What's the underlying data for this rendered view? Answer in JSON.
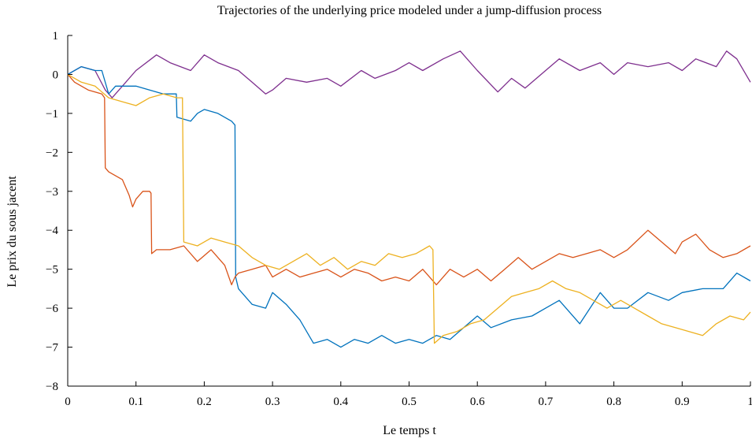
{
  "chart_data": {
    "type": "line",
    "title": "Trajectories of the underlying price modeled under a jump-diffusion process",
    "xlabel": "Le temps t",
    "ylabel": "Le prix du sous jacent",
    "xlim": [
      0,
      1
    ],
    "ylim": [
      -8,
      1
    ],
    "xticks": [
      0,
      0.1,
      0.2,
      0.3,
      0.4,
      0.5,
      0.6,
      0.7,
      0.8,
      0.9,
      1
    ],
    "xtick_labels": [
      "0",
      "0.1",
      "0.2",
      "0.3",
      "0.4",
      "0.5",
      "0.6",
      "0.7",
      "0.8",
      "0.9",
      "1"
    ],
    "yticks": [
      1,
      0,
      -1,
      -2,
      -3,
      -4,
      -5,
      -6,
      -7,
      -8
    ],
    "ytick_labels": [
      "1",
      "0",
      "−1",
      "−2",
      "−3",
      "−4",
      "−5",
      "−6",
      "−7",
      "−8"
    ],
    "grid": false,
    "legend": "none",
    "series": [
      {
        "color": "#7E2F8E",
        "x": [
          0,
          0.02,
          0.04,
          0.055,
          0.065,
          0.08,
          0.1,
          0.13,
          0.15,
          0.18,
          0.2,
          0.22,
          0.25,
          0.27,
          0.29,
          0.3,
          0.32,
          0.35,
          0.38,
          0.4,
          0.43,
          0.45,
          0.48,
          0.5,
          0.52,
          0.55,
          0.575,
          0.6,
          0.63,
          0.65,
          0.67,
          0.7,
          0.72,
          0.75,
          0.78,
          0.8,
          0.82,
          0.85,
          0.88,
          0.9,
          0.92,
          0.95,
          0.965,
          0.98,
          1.0
        ],
        "y": [
          0,
          0.2,
          0.1,
          -0.4,
          -0.6,
          -0.3,
          0.1,
          0.5,
          0.3,
          0.1,
          0.5,
          0.3,
          0.1,
          -0.2,
          -0.5,
          -0.4,
          -0.1,
          -0.2,
          -0.1,
          -0.3,
          0.1,
          -0.1,
          0.1,
          0.3,
          0.1,
          0.4,
          0.6,
          0.1,
          -0.45,
          -0.1,
          -0.35,
          0.1,
          0.4,
          0.1,
          0.3,
          0.0,
          0.3,
          0.2,
          0.3,
          0.1,
          0.4,
          0.2,
          0.6,
          0.4,
          -0.2
        ]
      },
      {
        "color": "#0072BD",
        "x": [
          0,
          0.02,
          0.04,
          0.05,
          0.06,
          0.07,
          0.1,
          0.12,
          0.14,
          0.159,
          0.16,
          0.18,
          0.19,
          0.2,
          0.22,
          0.24,
          0.245,
          0.246,
          0.25,
          0.27,
          0.29,
          0.3,
          0.32,
          0.34,
          0.36,
          0.38,
          0.4,
          0.42,
          0.44,
          0.46,
          0.48,
          0.5,
          0.52,
          0.54,
          0.56,
          0.58,
          0.6,
          0.62,
          0.65,
          0.68,
          0.7,
          0.72,
          0.75,
          0.78,
          0.8,
          0.82,
          0.85,
          0.88,
          0.9,
          0.93,
          0.96,
          0.98,
          1.0
        ],
        "y": [
          0,
          0.2,
          0.1,
          0.1,
          -0.5,
          -0.3,
          -0.3,
          -0.4,
          -0.5,
          -0.5,
          -1.1,
          -1.2,
          -1.0,
          -0.9,
          -1.0,
          -1.2,
          -1.3,
          -5.2,
          -5.5,
          -5.9,
          -6.0,
          -5.6,
          -5.9,
          -6.3,
          -6.9,
          -6.8,
          -7.0,
          -6.8,
          -6.9,
          -6.7,
          -6.9,
          -6.8,
          -6.9,
          -6.7,
          -6.8,
          -6.5,
          -6.2,
          -6.5,
          -6.3,
          -6.2,
          -6.0,
          -5.8,
          -6.4,
          -5.6,
          -6.0,
          -6.0,
          -5.6,
          -5.8,
          -5.6,
          -5.5,
          -5.5,
          -5.1,
          -5.3
        ]
      },
      {
        "color": "#D95319",
        "x": [
          0,
          0.01,
          0.03,
          0.05,
          0.054,
          0.055,
          0.06,
          0.08,
          0.09,
          0.095,
          0.1,
          0.11,
          0.12,
          0.122,
          0.123,
          0.13,
          0.15,
          0.17,
          0.19,
          0.21,
          0.23,
          0.24,
          0.245,
          0.25,
          0.27,
          0.29,
          0.3,
          0.32,
          0.34,
          0.36,
          0.38,
          0.4,
          0.42,
          0.44,
          0.46,
          0.48,
          0.5,
          0.52,
          0.54,
          0.56,
          0.58,
          0.6,
          0.62,
          0.64,
          0.66,
          0.68,
          0.7,
          0.72,
          0.74,
          0.76,
          0.78,
          0.8,
          0.82,
          0.85,
          0.87,
          0.89,
          0.9,
          0.92,
          0.94,
          0.96,
          0.98,
          1.0
        ],
        "y": [
          0,
          -0.2,
          -0.4,
          -0.5,
          -0.6,
          -2.4,
          -2.5,
          -2.7,
          -3.1,
          -3.4,
          -3.2,
          -3.0,
          -3.0,
          -3.05,
          -4.6,
          -4.5,
          -4.5,
          -4.4,
          -4.8,
          -4.5,
          -4.9,
          -5.4,
          -5.2,
          -5.1,
          -5.0,
          -4.9,
          -5.2,
          -5.0,
          -5.2,
          -5.1,
          -5.0,
          -5.2,
          -5.0,
          -5.1,
          -5.3,
          -5.2,
          -5.3,
          -5.0,
          -5.4,
          -5.0,
          -5.2,
          -5.0,
          -5.3,
          -5.0,
          -4.7,
          -5.0,
          -4.8,
          -4.6,
          -4.7,
          -4.6,
          -4.5,
          -4.7,
          -4.5,
          -4.0,
          -4.3,
          -4.6,
          -4.3,
          -4.1,
          -4.5,
          -4.7,
          -4.6,
          -4.4
        ]
      },
      {
        "color": "#EDB120",
        "x": [
          0,
          0.02,
          0.04,
          0.06,
          0.08,
          0.1,
          0.12,
          0.14,
          0.16,
          0.168,
          0.17,
          0.19,
          0.21,
          0.23,
          0.25,
          0.27,
          0.29,
          0.31,
          0.33,
          0.35,
          0.37,
          0.39,
          0.41,
          0.43,
          0.45,
          0.47,
          0.49,
          0.51,
          0.53,
          0.535,
          0.537,
          0.55,
          0.57,
          0.59,
          0.61,
          0.63,
          0.65,
          0.67,
          0.69,
          0.71,
          0.73,
          0.75,
          0.77,
          0.79,
          0.81,
          0.83,
          0.85,
          0.87,
          0.89,
          0.91,
          0.93,
          0.95,
          0.97,
          0.99,
          1.0
        ],
        "y": [
          0,
          -0.2,
          -0.3,
          -0.6,
          -0.7,
          -0.8,
          -0.6,
          -0.5,
          -0.6,
          -0.6,
          -4.3,
          -4.4,
          -4.2,
          -4.3,
          -4.4,
          -4.7,
          -4.9,
          -5.0,
          -4.8,
          -4.6,
          -4.9,
          -4.7,
          -5.0,
          -4.8,
          -4.9,
          -4.6,
          -4.7,
          -4.6,
          -4.4,
          -4.5,
          -6.9,
          -6.7,
          -6.6,
          -6.4,
          -6.3,
          -6.0,
          -5.7,
          -5.6,
          -5.5,
          -5.3,
          -5.5,
          -5.6,
          -5.8,
          -6.0,
          -5.8,
          -6.0,
          -6.2,
          -6.4,
          -6.5,
          -6.6,
          -6.7,
          -6.4,
          -6.2,
          -6.3,
          -6.1
        ]
      }
    ]
  }
}
